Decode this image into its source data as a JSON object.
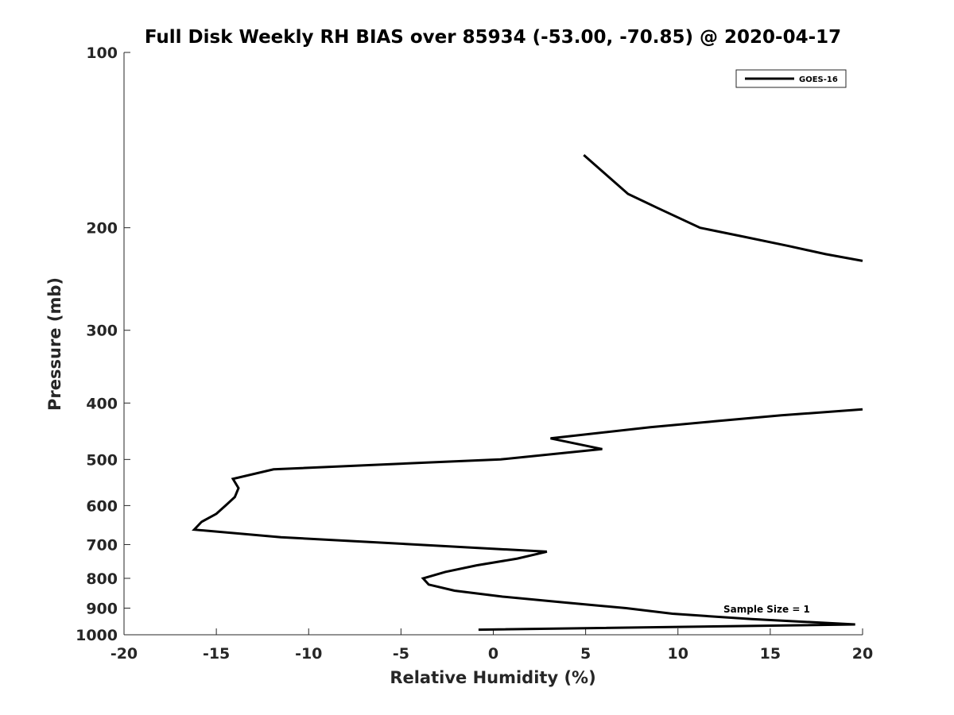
{
  "chart_data": {
    "type": "line",
    "title": "Full Disk Weekly RH BIAS over 85934 (-53.00, -70.85) @ 2020-04-17",
    "xlabel": "Relative Humidity (%)",
    "ylabel": "Pressure (mb)",
    "xlim": [
      -20,
      20
    ],
    "ylim": [
      100,
      1000
    ],
    "y_scale": "log",
    "y_reversed": true,
    "x_ticks": [
      "-20",
      "-15",
      "-10",
      "-5",
      "0",
      "5",
      "10",
      "15",
      "20"
    ],
    "y_ticks": [
      "100",
      "200",
      "300",
      "400",
      "500",
      "600",
      "700",
      "800",
      "900",
      "1000"
    ],
    "grid": false,
    "legend": {
      "position": "top-right",
      "entries": [
        "GOES-16"
      ]
    },
    "annotation": "Sample Size = 1",
    "line_color": "#000000",
    "series": [
      {
        "name": "GOES-16",
        "segments": [
          [
            [
              4.9,
              150
            ],
            [
              7.3,
              175
            ],
            [
              8.9,
              185
            ],
            [
              11.2,
              200
            ],
            [
              13.5,
              207
            ],
            [
              16.0,
              215
            ],
            [
              18.0,
              222
            ],
            [
              20.0,
              228
            ]
          ],
          [
            [
              20.0,
              410
            ],
            [
              15.6,
              420
            ],
            [
              12.0,
              430
            ],
            [
              8.5,
              440
            ],
            [
              3.1,
              460
            ],
            [
              5.9,
              480
            ],
            [
              0.4,
              500
            ],
            [
              -3.5,
              506
            ],
            [
              -11.9,
              520
            ],
            [
              -14.1,
              540
            ],
            [
              -13.8,
              560
            ],
            [
              -14.0,
              580
            ],
            [
              -14.5,
              600
            ],
            [
              -15.0,
              620
            ],
            [
              -15.8,
              640
            ],
            [
              -16.2,
              660
            ],
            [
              -11.5,
              680
            ],
            [
              2.9,
              720
            ],
            [
              1.3,
              740
            ],
            [
              -0.9,
              760
            ],
            [
              -2.6,
              780
            ],
            [
              -3.8,
              800
            ],
            [
              -3.5,
              820
            ],
            [
              -2.1,
              840
            ],
            [
              0.5,
              860
            ],
            [
              3.8,
              880
            ],
            [
              7.2,
              900
            ],
            [
              9.7,
              920
            ],
            [
              14.0,
              940
            ],
            [
              19.6,
              960
            ],
            [
              -0.8,
              980
            ]
          ]
        ]
      }
    ]
  }
}
